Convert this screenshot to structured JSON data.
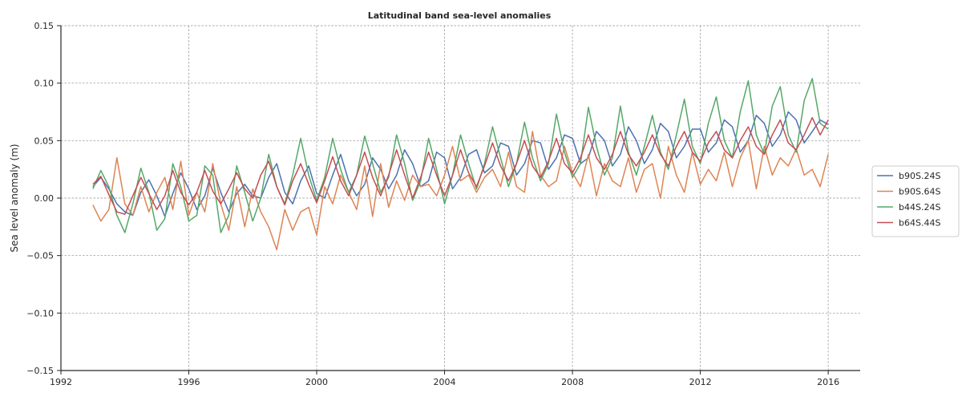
{
  "chart_data": {
    "type": "line",
    "title": "Latitudinal band sea-level anomalies",
    "xlabel": "",
    "ylabel": "Sea level anomaly (m)",
    "xlim": [
      1992.0,
      2017.0
    ],
    "ylim": [
      -0.15,
      0.15
    ],
    "x_ticks": [
      1992,
      1996,
      2000,
      2004,
      2008,
      2012,
      2016
    ],
    "x_tick_labels": [
      "1992",
      "1996",
      "2000",
      "2004",
      "2008",
      "2012",
      "2016"
    ],
    "y_ticks": [
      -0.15,
      -0.1,
      -0.05,
      0.0,
      0.05,
      0.1,
      0.15
    ],
    "y_tick_labels": [
      "−0.15",
      "−0.10",
      "−0.05",
      "0.00",
      "0.05",
      "0.10",
      "0.15"
    ],
    "grid": true,
    "legend_position": "right",
    "x": [
      1993.0,
      1993.25,
      1993.5,
      1993.75,
      1994.0,
      1994.25,
      1994.5,
      1994.75,
      1995.0,
      1995.25,
      1995.5,
      1995.75,
      1996.0,
      1996.25,
      1996.5,
      1996.75,
      1997.0,
      1997.25,
      1997.5,
      1997.75,
      1998.0,
      1998.25,
      1998.5,
      1998.75,
      1999.0,
      1999.25,
      1999.5,
      1999.75,
      2000.0,
      2000.25,
      2000.5,
      2000.75,
      2001.0,
      2001.25,
      2001.5,
      2001.75,
      2002.0,
      2002.25,
      2002.5,
      2002.75,
      2003.0,
      2003.25,
      2003.5,
      2003.75,
      2004.0,
      2004.25,
      2004.5,
      2004.75,
      2005.0,
      2005.25,
      2005.5,
      2005.75,
      2006.0,
      2006.25,
      2006.5,
      2006.75,
      2007.0,
      2007.25,
      2007.5,
      2007.75,
      2008.0,
      2008.25,
      2008.5,
      2008.75,
      2009.0,
      2009.25,
      2009.5,
      2009.75,
      2010.0,
      2010.25,
      2010.5,
      2010.75,
      2011.0,
      2011.25,
      2011.5,
      2011.75,
      2012.0,
      2012.25,
      2012.5,
      2012.75,
      2013.0,
      2013.25,
      2013.5,
      2013.75,
      2014.0,
      2014.25,
      2014.5,
      2014.75,
      2015.0,
      2015.25,
      2015.5,
      2015.75,
      2016.0
    ],
    "series": [
      {
        "name": "b90S.24S",
        "color": "#4c72b0",
        "values": [
          0.01,
          0.018,
          0.008,
          -0.005,
          -0.012,
          -0.015,
          0.005,
          0.016,
          0.002,
          -0.016,
          0.004,
          0.022,
          0.008,
          -0.01,
          0.002,
          0.026,
          0.005,
          -0.012,
          0.004,
          0.012,
          0.002,
          0.0,
          0.018,
          0.03,
          0.005,
          -0.005,
          0.015,
          0.028,
          0.004,
          0.0,
          0.02,
          0.038,
          0.015,
          0.002,
          0.012,
          0.035,
          0.025,
          0.008,
          0.02,
          0.042,
          0.03,
          0.01,
          0.015,
          0.04,
          0.035,
          0.008,
          0.018,
          0.038,
          0.042,
          0.022,
          0.028,
          0.048,
          0.045,
          0.02,
          0.03,
          0.05,
          0.048,
          0.025,
          0.035,
          0.055,
          0.052,
          0.03,
          0.035,
          0.058,
          0.05,
          0.028,
          0.038,
          0.062,
          0.05,
          0.03,
          0.042,
          0.065,
          0.058,
          0.035,
          0.045,
          0.06,
          0.06,
          0.04,
          0.048,
          0.068,
          0.062,
          0.04,
          0.05,
          0.072,
          0.065,
          0.045,
          0.055,
          0.075,
          0.068,
          0.048,
          0.058,
          0.068,
          0.064
        ]
      },
      {
        "name": "b90S.64S",
        "color": "#dd8452",
        "values": [
          -0.006,
          -0.02,
          -0.01,
          0.035,
          -0.005,
          -0.015,
          0.01,
          -0.012,
          0.005,
          0.018,
          -0.01,
          0.032,
          -0.015,
          0.005,
          -0.012,
          0.03,
          -0.005,
          -0.028,
          0.01,
          -0.025,
          0.008,
          -0.012,
          -0.025,
          -0.045,
          -0.01,
          -0.028,
          -0.012,
          -0.008,
          -0.032,
          0.01,
          -0.005,
          0.02,
          0.005,
          -0.01,
          0.028,
          -0.016,
          0.03,
          -0.008,
          0.015,
          -0.002,
          0.02,
          0.01,
          0.012,
          0.002,
          0.02,
          0.045,
          0.015,
          0.02,
          0.005,
          0.018,
          0.025,
          0.01,
          0.04,
          0.01,
          0.005,
          0.058,
          0.02,
          0.01,
          0.015,
          0.045,
          0.022,
          0.01,
          0.038,
          0.002,
          0.03,
          0.015,
          0.01,
          0.035,
          0.005,
          0.025,
          0.03,
          0.0,
          0.045,
          0.02,
          0.005,
          0.04,
          0.012,
          0.025,
          0.015,
          0.04,
          0.01,
          0.035,
          0.05,
          0.008,
          0.045,
          0.02,
          0.035,
          0.028,
          0.043,
          0.02,
          0.025,
          0.01,
          0.038
        ]
      },
      {
        "name": "b44S.24S",
        "color": "#55a868",
        "values": [
          0.008,
          0.024,
          0.01,
          -0.015,
          -0.03,
          -0.005,
          0.026,
          0.005,
          -0.028,
          -0.018,
          0.03,
          0.01,
          -0.02,
          -0.015,
          0.028,
          0.02,
          -0.03,
          -0.015,
          0.028,
          0.005,
          -0.02,
          0.0,
          0.038,
          0.01,
          -0.005,
          0.02,
          0.052,
          0.02,
          -0.002,
          0.018,
          0.052,
          0.025,
          0.005,
          0.02,
          0.054,
          0.03,
          0.005,
          0.018,
          0.055,
          0.03,
          -0.002,
          0.015,
          0.052,
          0.025,
          -0.005,
          0.02,
          0.055,
          0.03,
          0.008,
          0.03,
          0.062,
          0.035,
          0.01,
          0.03,
          0.066,
          0.035,
          0.015,
          0.03,
          0.073,
          0.04,
          0.018,
          0.03,
          0.079,
          0.045,
          0.02,
          0.035,
          0.08,
          0.04,
          0.02,
          0.045,
          0.072,
          0.04,
          0.025,
          0.055,
          0.086,
          0.045,
          0.03,
          0.065,
          0.088,
          0.05,
          0.035,
          0.075,
          0.102,
          0.055,
          0.038,
          0.08,
          0.097,
          0.055,
          0.04,
          0.085,
          0.104,
          0.065,
          0.06
        ]
      },
      {
        "name": "b64S.44S",
        "color": "#c44e52",
        "values": [
          0.012,
          0.019,
          0.003,
          -0.012,
          -0.014,
          0.002,
          0.018,
          0.004,
          -0.01,
          0.002,
          0.024,
          0.005,
          -0.006,
          0.005,
          0.024,
          0.006,
          -0.005,
          0.008,
          0.022,
          0.008,
          0.0,
          0.02,
          0.032,
          0.01,
          -0.006,
          0.015,
          0.03,
          0.012,
          -0.004,
          0.015,
          0.036,
          0.015,
          0.002,
          0.02,
          0.04,
          0.018,
          0.002,
          0.02,
          0.042,
          0.02,
          0.0,
          0.018,
          0.04,
          0.02,
          0.002,
          0.02,
          0.042,
          0.022,
          0.01,
          0.028,
          0.048,
          0.028,
          0.015,
          0.03,
          0.05,
          0.028,
          0.018,
          0.032,
          0.052,
          0.03,
          0.022,
          0.035,
          0.055,
          0.035,
          0.025,
          0.038,
          0.058,
          0.038,
          0.028,
          0.04,
          0.055,
          0.038,
          0.028,
          0.045,
          0.058,
          0.04,
          0.032,
          0.048,
          0.058,
          0.042,
          0.035,
          0.05,
          0.062,
          0.045,
          0.038,
          0.055,
          0.068,
          0.048,
          0.042,
          0.055,
          0.07,
          0.055,
          0.068
        ]
      }
    ]
  }
}
